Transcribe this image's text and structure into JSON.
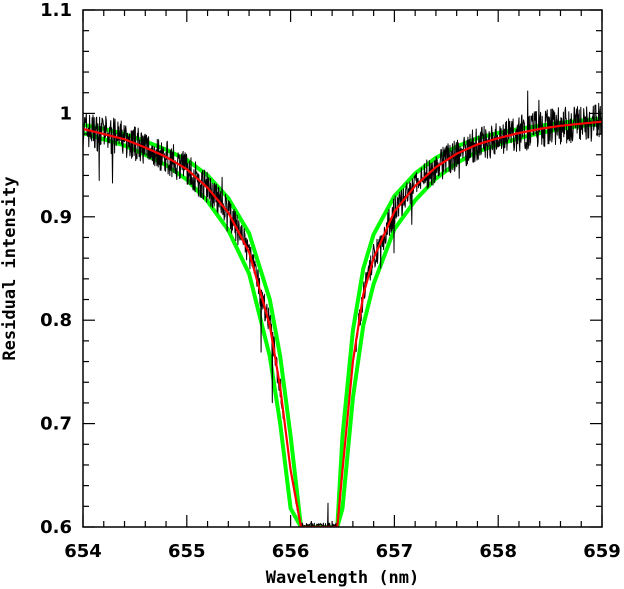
{
  "chart_data": {
    "type": "line",
    "xlabel": "Wavelength (nm)",
    "ylabel": "Residual intensity",
    "xlim": [
      654,
      659
    ],
    "ylim": [
      0.6,
      1.1
    ],
    "xticks": [
      "654",
      "655",
      "656",
      "657",
      "658",
      "659"
    ],
    "yticks": [
      "0.6",
      "0.7",
      "0.8",
      "0.9",
      "1",
      "1.1"
    ],
    "grid": false,
    "legend": "none",
    "line_center_nm": 656.28,
    "series": [
      {
        "kind": "observed spectrum (noisy)",
        "color": "#000000",
        "x": [
          654.0,
          654.2,
          654.4,
          654.6,
          654.8,
          655.0,
          655.2,
          655.4,
          655.6,
          655.8,
          655.9,
          656.0,
          656.1,
          656.15,
          656.2,
          656.36,
          656.4,
          656.45,
          656.5,
          656.6,
          656.7,
          656.8,
          657.0,
          657.2,
          657.4,
          657.6,
          657.8,
          658.0,
          658.2,
          658.4,
          658.6,
          658.8,
          659.0
        ],
        "y": [
          0.985,
          0.98,
          0.975,
          0.967,
          0.958,
          0.946,
          0.928,
          0.904,
          0.866,
          0.795,
          0.735,
          0.655,
          0.6,
          0.6,
          0.6,
          0.6,
          0.6,
          0.6,
          0.655,
          0.76,
          0.825,
          0.86,
          0.905,
          0.93,
          0.948,
          0.961,
          0.97,
          0.976,
          0.981,
          0.985,
          0.988,
          0.99,
          0.992
        ]
      },
      {
        "kind": "model fit",
        "color": "#ff0000",
        "x": [
          654.0,
          654.2,
          654.4,
          654.6,
          654.8,
          655.0,
          655.2,
          655.4,
          655.6,
          655.8,
          655.9,
          656.0,
          656.1,
          656.15,
          656.2,
          656.36,
          656.4,
          656.45,
          656.5,
          656.6,
          656.7,
          656.8,
          657.0,
          657.2,
          657.4,
          657.6,
          657.8,
          658.0,
          658.2,
          658.4,
          658.6,
          658.8,
          659.0
        ],
        "y": [
          0.985,
          0.98,
          0.975,
          0.967,
          0.958,
          0.946,
          0.928,
          0.904,
          0.866,
          0.795,
          0.735,
          0.655,
          0.6,
          0.6,
          0.6,
          0.6,
          0.6,
          0.6,
          0.655,
          0.76,
          0.825,
          0.86,
          0.905,
          0.93,
          0.948,
          0.961,
          0.97,
          0.976,
          0.981,
          0.985,
          0.988,
          0.99,
          0.992
        ]
      },
      {
        "kind": "model bound (upper)",
        "color": "#00ff00",
        "x": [
          654.0,
          654.2,
          654.4,
          654.6,
          654.8,
          655.0,
          655.2,
          655.4,
          655.6,
          655.8,
          655.9,
          656.0,
          656.1,
          656.15,
          656.2,
          656.36,
          656.4,
          656.45,
          656.5,
          656.6,
          656.7,
          656.8,
          657.0,
          657.2,
          657.4,
          657.6,
          657.8,
          658.0,
          658.2,
          658.4,
          658.6,
          658.8,
          659.0
        ],
        "y": [
          0.989,
          0.985,
          0.98,
          0.973,
          0.965,
          0.955,
          0.94,
          0.918,
          0.884,
          0.82,
          0.765,
          0.688,
          0.6,
          0.6,
          0.6,
          0.6,
          0.6,
          0.6,
          0.688,
          0.79,
          0.85,
          0.883,
          0.92,
          0.942,
          0.957,
          0.968,
          0.976,
          0.981,
          0.985,
          0.988,
          0.991,
          0.993,
          0.995
        ]
      },
      {
        "kind": "model bound (lower)",
        "color": "#00ff00",
        "x": [
          654.0,
          654.2,
          654.4,
          654.6,
          654.8,
          655.0,
          655.2,
          655.4,
          655.6,
          655.8,
          655.9,
          656.0,
          656.1,
          656.15,
          656.2,
          656.36,
          656.4,
          656.45,
          656.5,
          656.6,
          656.7,
          656.8,
          657.0,
          657.2,
          657.4,
          657.6,
          657.8,
          658.0,
          658.2,
          658.4,
          658.6,
          658.8,
          659.0
        ],
        "y": [
          0.981,
          0.975,
          0.969,
          0.96,
          0.95,
          0.936,
          0.915,
          0.887,
          0.845,
          0.765,
          0.7,
          0.618,
          0.6,
          0.6,
          0.6,
          0.6,
          0.6,
          0.6,
          0.618,
          0.725,
          0.795,
          0.835,
          0.888,
          0.916,
          0.937,
          0.952,
          0.963,
          0.97,
          0.976,
          0.981,
          0.985,
          0.988,
          0.99
        ]
      }
    ]
  }
}
